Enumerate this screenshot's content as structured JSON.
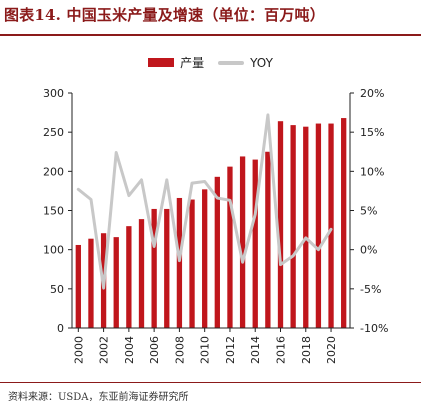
{
  "title": "图表14.  中国玉米产量及增速（单位：百万吨）",
  "source": "资料来源：USDA，东亚前海证券研究所",
  "colors": {
    "bar": "#c0161c",
    "line": "#c8c8c8",
    "accent": "#8b1a1a"
  },
  "chart_data": {
    "type": "bar",
    "x": [
      2000,
      2001,
      2002,
      2003,
      2004,
      2005,
      2006,
      2007,
      2008,
      2009,
      2010,
      2011,
      2012,
      2013,
      2014,
      2015,
      2016,
      2017,
      2018,
      2019,
      2020,
      2021
    ],
    "x_tick_labels": [
      "2000",
      "2002",
      "2004",
      "2006",
      "2008",
      "2010",
      "2012",
      "2014",
      "2016",
      "2018",
      "2020"
    ],
    "series": [
      {
        "name": "产量",
        "type": "bar",
        "axis": "left",
        "values": [
          106,
          114,
          121,
          116,
          130,
          139,
          152,
          152,
          166,
          164,
          177,
          193,
          206,
          219,
          215,
          225,
          264,
          259,
          257,
          261,
          261,
          268
        ]
      },
      {
        "name": "YOY",
        "type": "line",
        "axis": "right",
        "values": [
          7.7,
          6.4,
          -4.9,
          12.4,
          6.9,
          8.9,
          0.4,
          8.9,
          -1.4,
          8.5,
          8.7,
          6.6,
          6.3,
          -1.6,
          4.5,
          17.2,
          -1.9,
          -0.8,
          1.5,
          0.0,
          2.6,
          null
        ]
      }
    ],
    "ylim": [
      0,
      300
    ],
    "yticks": [
      0,
      50,
      100,
      150,
      200,
      250,
      300
    ],
    "y2lim": [
      -10,
      20
    ],
    "y2ticks": [
      "-10%",
      "-5%",
      "0%",
      "5%",
      "10%",
      "15%",
      "20%"
    ],
    "grid": false,
    "legend_position": "top-center"
  }
}
